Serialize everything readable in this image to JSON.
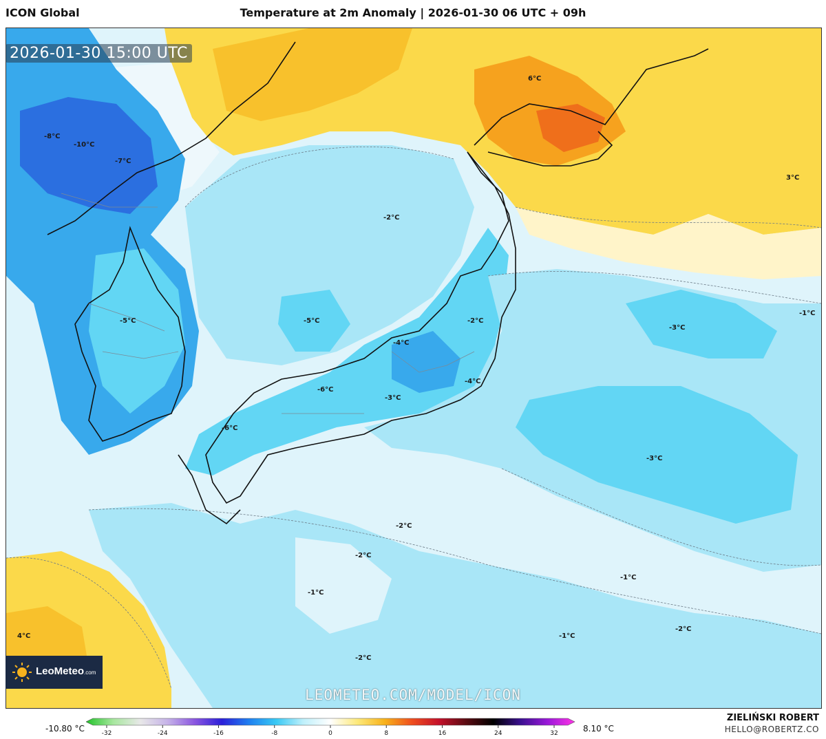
{
  "header": {
    "model_name": "ICON Global",
    "title": "Temperature at 2m Anomaly | 2026-01-30 06 UTC + 09h"
  },
  "map": {
    "timestamp": "2026-01-30 15:00 UTC",
    "watermark": "LEOMETEO.COM/MODEL/ICON",
    "contour_labels": [
      {
        "text": "-8°C"
      },
      {
        "text": "-10°C"
      },
      {
        "text": "-7°C"
      },
      {
        "text": "6°C"
      },
      {
        "text": "3°C"
      },
      {
        "text": "-2°C"
      },
      {
        "text": "-5°C"
      },
      {
        "text": "-5°C"
      },
      {
        "text": "-2°C"
      },
      {
        "text": "-1°C"
      },
      {
        "text": "-3°C"
      },
      {
        "text": "-4°C"
      },
      {
        "text": "-4°C"
      },
      {
        "text": "-6°C"
      },
      {
        "text": "-3°C"
      },
      {
        "text": "-6°C"
      },
      {
        "text": "-3°C"
      },
      {
        "text": "-2°C"
      },
      {
        "text": "-2°C"
      },
      {
        "text": "-1°C"
      },
      {
        "text": "-1°C"
      },
      {
        "text": "-2°C"
      },
      {
        "text": "-1°C"
      },
      {
        "text": "-2°C"
      },
      {
        "text": "4°C"
      }
    ],
    "colors": {
      "ocean_pale": "#dff4fb",
      "light_blue": "#a9e6f7",
      "mid_blue": "#62d6f4",
      "deep_blue": "#38a9ec",
      "darker_blue": "#2b6fe0",
      "yellow": "#fbd94a",
      "orange": "#f6a21e",
      "dark_orange": "#ef6f1b"
    }
  },
  "branding": {
    "logo_text": "LeoMeteo",
    "logo_suffix": ".com"
  },
  "legend": {
    "min_label": "-10.80 °C",
    "max_label": "8.10 °C",
    "ticks": [
      "-32",
      "-24",
      "-16",
      "-8",
      "0",
      "8",
      "16",
      "24",
      "32"
    ],
    "gradient_stops": [
      "#22c32a",
      "#a7e79e",
      "#e8e8e8",
      "#c6b3e8",
      "#8b56e0",
      "#2b1fd9",
      "#1f7ff0",
      "#38c9f4",
      "#bff0fb",
      "#ffffff",
      "#fde97a",
      "#f8b21a",
      "#ef4e1e",
      "#c4102a",
      "#5a0b12",
      "#000000",
      "#3a1090",
      "#9a18d9",
      "#ff33e6"
    ]
  },
  "author": {
    "name": "ZIELIŃSKI ROBERT",
    "email": "HELLO@ROBERTZ.CO"
  }
}
